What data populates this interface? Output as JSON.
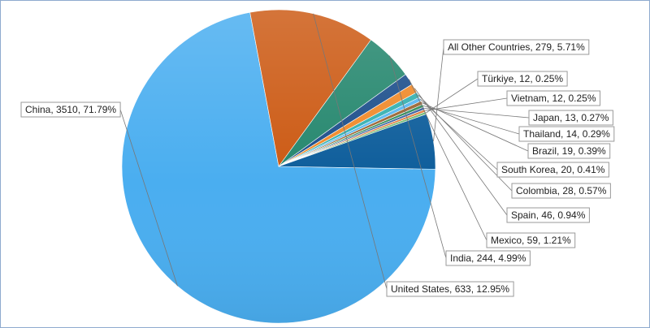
{
  "chart_data": {
    "type": "pie",
    "title": "",
    "slices": [
      {
        "label": "China",
        "value": 3510,
        "percent": "71.79%",
        "color": "#4aaef0"
      },
      {
        "label": "United States",
        "value": 633,
        "percent": "12.95%",
        "color": "#cc5a14"
      },
      {
        "label": "India",
        "value": 244,
        "percent": "4.99%",
        "color": "#25876e"
      },
      {
        "label": "Mexico",
        "value": 59,
        "percent": "1.21%",
        "color": "#1d4f8c"
      },
      {
        "label": "Spain",
        "value": 46,
        "percent": "0.94%",
        "color": "#f08a2a"
      },
      {
        "label": "Colombia",
        "value": 28,
        "percent": "0.57%",
        "color": "#35b0b0"
      },
      {
        "label": "South Korea",
        "value": 20,
        "percent": "0.41%",
        "color": "#5ab8f2"
      },
      {
        "label": "Brazil",
        "value": 19,
        "percent": "0.39%",
        "color": "#9a6432"
      },
      {
        "label": "Thailand",
        "value": 14,
        "percent": "0.29%",
        "color": "#2e8c5a"
      },
      {
        "label": "Japan",
        "value": 13,
        "percent": "0.27%",
        "color": "#3a5ea0"
      },
      {
        "label": "Vietnam",
        "value": 12,
        "percent": "0.25%",
        "color": "#e07b39"
      },
      {
        "label": "Türkiye",
        "value": 12,
        "percent": "0.25%",
        "color": "#6fb86f"
      },
      {
        "label": "All Other Countries",
        "value": 279,
        "percent": "5.71%",
        "color": "#0d5d9b"
      }
    ]
  }
}
